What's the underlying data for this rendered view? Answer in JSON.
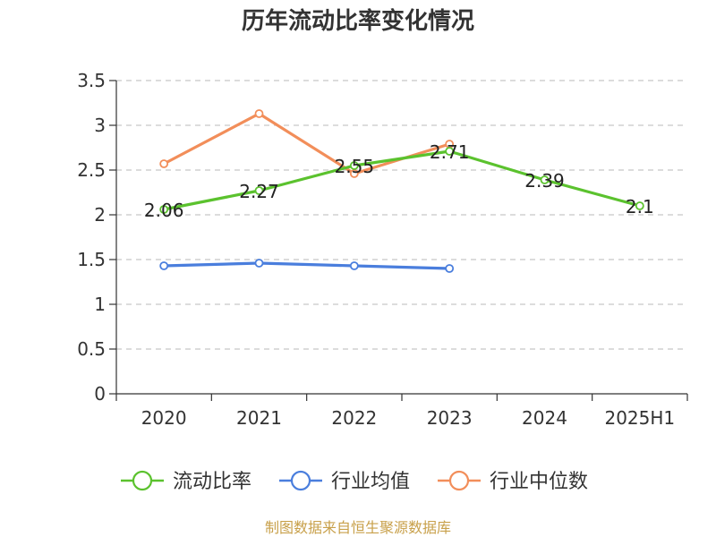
{
  "chart_data": {
    "type": "line",
    "title": "历年流动比率变化情况",
    "categories": [
      "2020",
      "2021",
      "2022",
      "2023",
      "2024",
      "2025H1"
    ],
    "y_ticks": [
      "0",
      "0.5",
      "1",
      "1.5",
      "2",
      "2.5",
      "3",
      "3.5"
    ],
    "ylim": [
      0,
      3.5
    ],
    "grid": true,
    "legend_position": "bottom",
    "series": [
      {
        "name": "流动比率",
        "color": "#5bc22e",
        "values": [
          2.06,
          2.27,
          2.55,
          2.71,
          2.39,
          2.1
        ],
        "labels": [
          "2.06",
          "2.27",
          "2.55",
          "2.71",
          "2.39",
          "2.1"
        ]
      },
      {
        "name": "行业均值",
        "color": "#4a7edd",
        "values": [
          1.43,
          1.46,
          1.43,
          1.4,
          null,
          null
        ]
      },
      {
        "name": "行业中位数",
        "color": "#f28e5a",
        "values": [
          2.57,
          3.13,
          2.46,
          2.79,
          null,
          null
        ]
      }
    ],
    "source": "制图数据来自恒生聚源数据库"
  }
}
